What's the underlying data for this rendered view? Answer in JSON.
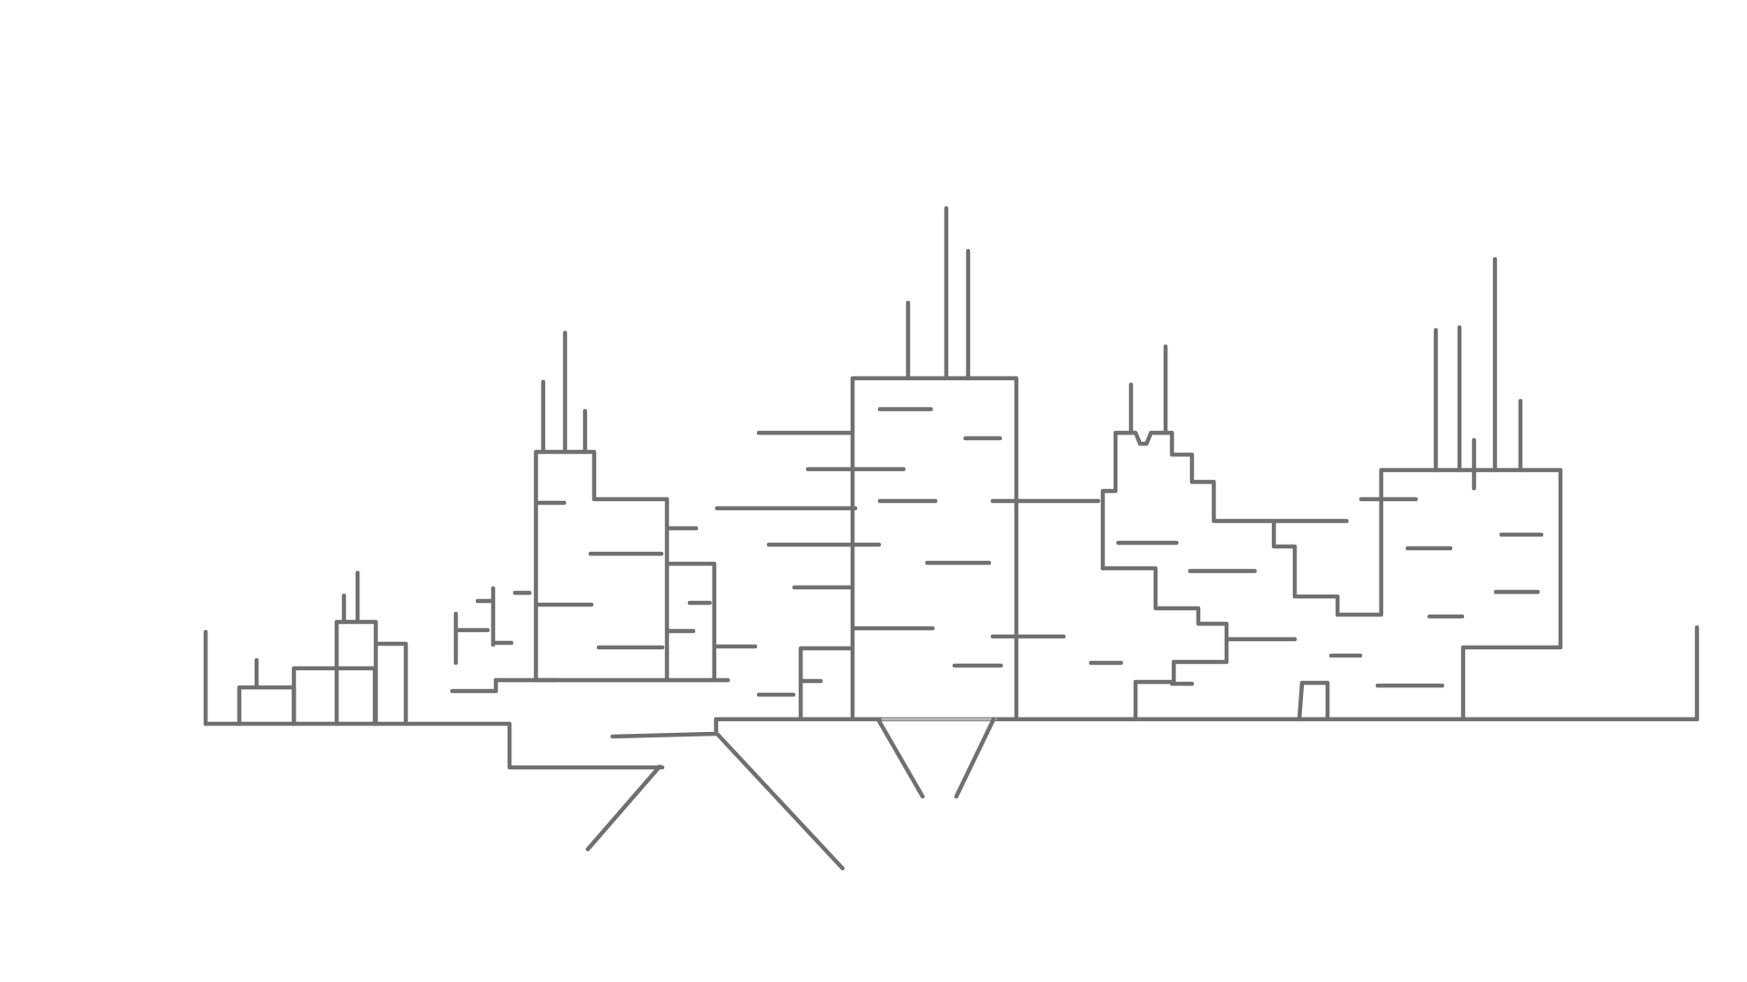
{
  "drawing": {
    "subject": "city-skyline-line-drawing",
    "stroke_color": "#707070",
    "background_color": "#ffffff"
  }
}
